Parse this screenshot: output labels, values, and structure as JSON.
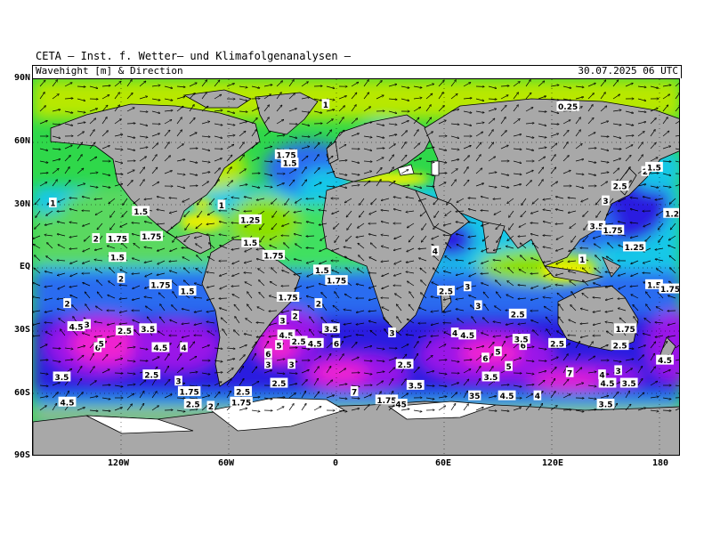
{
  "header": {
    "title": "CETA — Inst. f. Wetter— und Klimafolgenanalysen —",
    "variable": "Wavehight [m] & Direction",
    "datetime": "30.07.2025 06 UTC"
  },
  "axes": {
    "lat_ticks": [
      "90N",
      "60N",
      "30N",
      "EQ",
      "30S",
      "60S",
      "90S"
    ],
    "lon_ticks": [
      "120W",
      "60W",
      "0",
      "60E",
      "120E",
      "180"
    ]
  },
  "colors": {
    "land": "#a8a8a8",
    "sea_ice": "#ffffff",
    "calm_yellow": "#e8f000",
    "light_green": "#8ce000",
    "green": "#2fd84a",
    "cyan": "#18c8e8",
    "blue": "#2a6cf0",
    "deep_blue": "#2a1ee0",
    "purple": "#9a18e8",
    "magenta": "#f020d0"
  },
  "wave_labels": [
    {
      "text": "1",
      "lon": -6,
      "lat": 78
    },
    {
      "text": "0.25",
      "lon": 129,
      "lat": 77
    },
    {
      "text": "1.75",
      "lon": -28,
      "lat": 54
    },
    {
      "text": "1.5",
      "lon": -26,
      "lat": 50
    },
    {
      "text": "1.25",
      "lon": -169,
      "lat": 36
    },
    {
      "text": "1",
      "lon": -158,
      "lat": 31
    },
    {
      "text": "1.25",
      "lon": -173,
      "lat": 24
    },
    {
      "text": "1",
      "lon": -64,
      "lat": 30
    },
    {
      "text": "1.25",
      "lon": -48,
      "lat": 23
    },
    {
      "text": "1.5",
      "lon": -109,
      "lat": 27
    },
    {
      "text": "2",
      "lon": -134,
      "lat": 14
    },
    {
      "text": "1.75",
      "lon": -122,
      "lat": 14
    },
    {
      "text": "1.75",
      "lon": -103,
      "lat": 15
    },
    {
      "text": "1.5",
      "lon": -122,
      "lat": 5
    },
    {
      "text": "1.5",
      "lon": -48,
      "lat": 12
    },
    {
      "text": "1.75",
      "lon": -35,
      "lat": 6
    },
    {
      "text": "1.5",
      "lon": -8,
      "lat": -1
    },
    {
      "text": "1.75",
      "lon": 0,
      "lat": -6
    },
    {
      "text": "1.75",
      "lon": -98,
      "lat": -8
    },
    {
      "text": "1.5",
      "lon": -83,
      "lat": -11
    },
    {
      "text": "2",
      "lon": -120,
      "lat": -5
    },
    {
      "text": "2",
      "lon": -150,
      "lat": -17
    },
    {
      "text": "1.75",
      "lon": -27,
      "lat": -14
    },
    {
      "text": "2",
      "lon": -10,
      "lat": -17
    },
    {
      "text": "3",
      "lon": -30,
      "lat": -25
    },
    {
      "text": "2",
      "lon": -23,
      "lat": -23
    },
    {
      "text": "4.5",
      "lon": -145,
      "lat": -28
    },
    {
      "text": "3",
      "lon": -139,
      "lat": -27
    },
    {
      "text": "2.5",
      "lon": -118,
      "lat": -30
    },
    {
      "text": "3.5",
      "lon": -105,
      "lat": -29
    },
    {
      "text": "3.5",
      "lon": -3,
      "lat": -29
    },
    {
      "text": "6",
      "lon": -133,
      "lat": -38
    },
    {
      "text": "5",
      "lon": -131,
      "lat": -36
    },
    {
      "text": "4.5",
      "lon": -98,
      "lat": -38
    },
    {
      "text": "4",
      "lon": -85,
      "lat": -38
    },
    {
      "text": "4.5",
      "lon": -28,
      "lat": -32
    },
    {
      "text": "2.5",
      "lon": -21,
      "lat": -35
    },
    {
      "text": "4.5",
      "lon": -12,
      "lat": -36
    },
    {
      "text": "6",
      "lon": 0,
      "lat": -36
    },
    {
      "text": "5",
      "lon": -32,
      "lat": -37
    },
    {
      "text": "6",
      "lon": -38,
      "lat": -41
    },
    {
      "text": "3",
      "lon": -38,
      "lat": -46
    },
    {
      "text": "3",
      "lon": -25,
      "lat": -46
    },
    {
      "text": "3.5",
      "lon": -153,
      "lat": -52
    },
    {
      "text": "2.5",
      "lon": -103,
      "lat": -51
    },
    {
      "text": "3",
      "lon": -88,
      "lat": -54
    },
    {
      "text": "2.5",
      "lon": -32,
      "lat": -55
    },
    {
      "text": "1.75",
      "lon": -82,
      "lat": -59
    },
    {
      "text": "2.5",
      "lon": -52,
      "lat": -59
    },
    {
      "text": "1.75",
      "lon": -53,
      "lat": -64
    },
    {
      "text": "4.5",
      "lon": -150,
      "lat": -64
    },
    {
      "text": "2.5",
      "lon": -80,
      "lat": -65
    },
    {
      "text": "2",
      "lon": -70,
      "lat": -66
    },
    {
      "text": "7",
      "lon": 10,
      "lat": -59
    },
    {
      "text": "1.75",
      "lon": 28,
      "lat": -63
    },
    {
      "text": "45",
      "lon": 36,
      "lat": -65
    },
    {
      "text": "3",
      "lon": 31,
      "lat": -31
    },
    {
      "text": "2.5",
      "lon": 38,
      "lat": -46
    },
    {
      "text": "3.5",
      "lon": 44,
      "lat": -56
    },
    {
      "text": "4",
      "lon": 55,
      "lat": 8
    },
    {
      "text": "2.5",
      "lon": 61,
      "lat": -11
    },
    {
      "text": "3",
      "lon": 73,
      "lat": -9
    },
    {
      "text": "3",
      "lon": 79,
      "lat": -18
    },
    {
      "text": "2.5",
      "lon": 101,
      "lat": -22
    },
    {
      "text": "4",
      "lon": 66,
      "lat": -31
    },
    {
      "text": "4.5",
      "lon": 73,
      "lat": -32
    },
    {
      "text": "6",
      "lon": 83,
      "lat": -43
    },
    {
      "text": "5",
      "lon": 90,
      "lat": -40
    },
    {
      "text": "5",
      "lon": 96,
      "lat": -47
    },
    {
      "text": "6",
      "lon": 104,
      "lat": -37
    },
    {
      "text": "3.5",
      "lon": 103,
      "lat": -34
    },
    {
      "text": "3.5",
      "lon": 86,
      "lat": -52
    },
    {
      "text": "35",
      "lon": 77,
      "lat": -61
    },
    {
      "text": "4.5",
      "lon": 95,
      "lat": -61
    },
    {
      "text": "4",
      "lon": 112,
      "lat": -61
    },
    {
      "text": "2.5",
      "lon": 123,
      "lat": -36
    },
    {
      "text": "7",
      "lon": 130,
      "lat": -50
    },
    {
      "text": "4",
      "lon": 148,
      "lat": -51
    },
    {
      "text": "4.5",
      "lon": 151,
      "lat": -55
    },
    {
      "text": "3",
      "lon": 157,
      "lat": -49
    },
    {
      "text": "3.5",
      "lon": 163,
      "lat": -55
    },
    {
      "text": "3.5",
      "lon": 150,
      "lat": -65
    },
    {
      "text": "2.5",
      "lon": 158,
      "lat": -37
    },
    {
      "text": "4.5",
      "lon": 183,
      "lat": -44
    },
    {
      "text": "1.75",
      "lon": 161,
      "lat": -29
    },
    {
      "text": "1.25",
      "lon": 166,
      "lat": 10
    },
    {
      "text": "1",
      "lon": 137,
      "lat": 4
    },
    {
      "text": "1.5",
      "lon": 177,
      "lat": -8
    },
    {
      "text": "1.75",
      "lon": 186,
      "lat": -10
    },
    {
      "text": "3.5",
      "lon": 145,
      "lat": 20
    },
    {
      "text": "1.75",
      "lon": 154,
      "lat": 18
    },
    {
      "text": "3",
      "lon": 150,
      "lat": 32
    },
    {
      "text": "2.5",
      "lon": 158,
      "lat": 39
    },
    {
      "text": "2",
      "lon": 172,
      "lat": 46
    },
    {
      "text": "1.5",
      "lon": 177,
      "lat": 48
    },
    {
      "text": "1.2",
      "lon": 187,
      "lat": 26
    }
  ]
}
